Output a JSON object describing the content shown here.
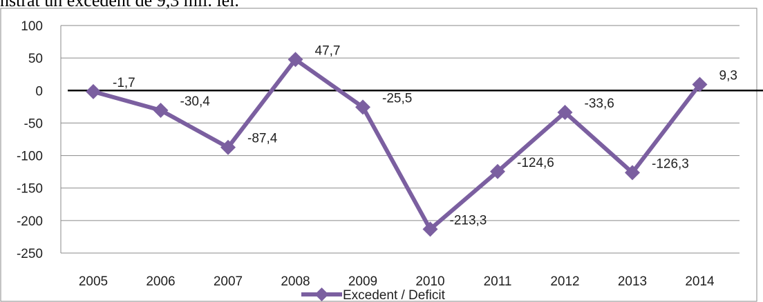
{
  "page": {
    "caption_fragment": "nstrat un excedent de 9,3 mil. lei."
  },
  "chart_data": {
    "type": "line",
    "categories": [
      "2005",
      "2006",
      "2007",
      "2008",
      "2009",
      "2010",
      "2011",
      "2012",
      "2013",
      "2014"
    ],
    "series": [
      {
        "name": "Excedent / Deficit",
        "values": [
          -1.7,
          -30.4,
          -87.4,
          47.7,
          -25.5,
          -213.3,
          -124.6,
          -33.6,
          -126.3,
          9.3
        ],
        "labels": [
          "-1,7",
          "-30,4",
          "-87,4",
          "47,7",
          "-25,5",
          "-213,3",
          "-124,6",
          "-33,6",
          "-126,3",
          "9,3"
        ],
        "color": "#7b5fa0",
        "marker": "diamond"
      }
    ],
    "title": "",
    "xlabel": "",
    "ylabel": "",
    "ylim": [
      -250,
      100
    ],
    "yticks": [
      100,
      50,
      0,
      -50,
      -100,
      -150,
      -200,
      -250
    ],
    "ytick_labels": [
      "100",
      "50",
      "0",
      "-50",
      "-100",
      "-150",
      "-200",
      "-250"
    ],
    "grid": true,
    "zero_line": true,
    "legend_position": "bottom",
    "colors": {
      "grid": "#8a8a8a",
      "axis": "#8a8a8a",
      "zero_line": "#000000",
      "border": "#8a8a8a"
    }
  }
}
